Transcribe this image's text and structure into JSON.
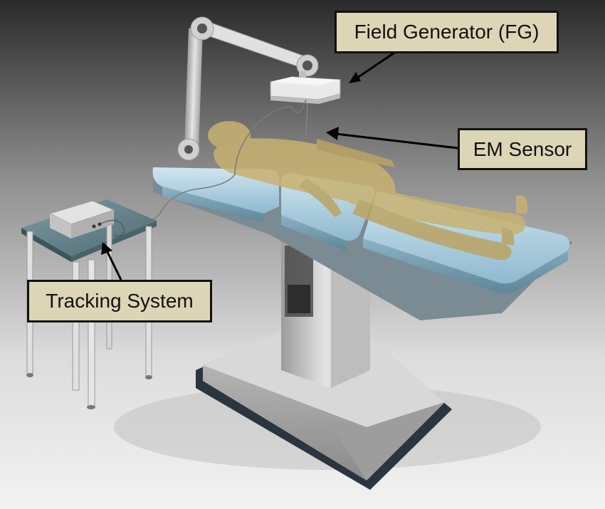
{
  "labels": {
    "field_generator": "Field Generator (FG)",
    "em_sensor": "EM Sensor",
    "tracking_system": "Tracking System"
  },
  "components": [
    {
      "name": "Field Generator (FG)",
      "icon": "field-generator-panel-icon"
    },
    {
      "name": "EM Sensor",
      "icon": "em-sensor-wire-icon"
    },
    {
      "name": "Tracking System",
      "icon": "tracking-box-icon"
    }
  ],
  "colors": {
    "callout_fill": "#ddd6b6",
    "callout_border": "#111111",
    "mattress": "#a9cde0",
    "patient": "#c8b271",
    "background_top": "#2a2a2a",
    "background_bottom": "#efefef"
  }
}
